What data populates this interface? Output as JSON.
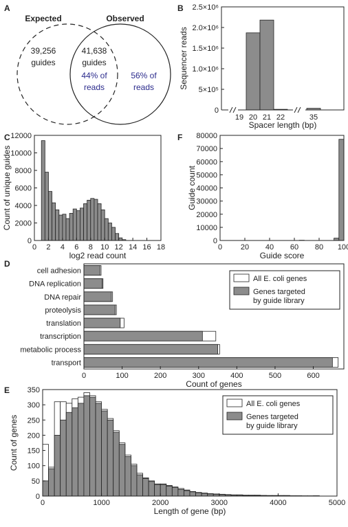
{
  "panels": {
    "A": {
      "label": "A",
      "expected_label": "Expected",
      "observed_label": "Observed",
      "expected_only_count": "39,256",
      "expected_only_unit": "guides",
      "overlap_count": "41,638",
      "overlap_unit": "guides",
      "overlap_pct_line1": "44% of",
      "overlap_pct_line2": "reads",
      "observed_only_line1": "56% of",
      "observed_only_line2": "reads",
      "pct_color": "#2b2b8c"
    },
    "B": {
      "label": "B"
    },
    "C": {
      "label": "C"
    },
    "D": {
      "label": "D"
    },
    "E": {
      "label": "E"
    },
    "F": {
      "label": "F"
    }
  },
  "colors": {
    "bar_fill": "#8c8c8c",
    "all_fill": "#ffffff"
  },
  "chart_data": [
    {
      "panel": "B",
      "type": "bar",
      "categories": [
        "19",
        "20",
        "21",
        "22",
        "35"
      ],
      "values": [
        0,
        1870000,
        2180000,
        15000,
        40000
      ],
      "xlabel": "Spacer length (bp)",
      "ylabel": "Sequencer reads",
      "yticks": [
        0,
        500000,
        1000000,
        1500000,
        2000000,
        2500000
      ],
      "ytick_labels": [
        "0",
        "5×10⁵",
        "1.0×10⁶",
        "1.5×10⁶",
        "2.0×10⁶",
        "2.5×10⁶"
      ],
      "ylim": [
        0,
        2500000
      ],
      "axis_break": true
    },
    {
      "panel": "C",
      "type": "bar",
      "bin_width": 0.5,
      "x_start": 1,
      "values": [
        11400,
        7800,
        5600,
        4300,
        3500,
        2900,
        3000,
        2500,
        3100,
        3600,
        3400,
        3700,
        4200,
        4600,
        4800,
        4700,
        4200,
        3500,
        2500,
        2000,
        1500,
        800,
        300,
        100,
        0,
        0
      ],
      "xlabel": "log2 read count",
      "ylabel": "Count of unique guides",
      "xticks": [
        0,
        2,
        4,
        6,
        8,
        10,
        12,
        14,
        16,
        18
      ],
      "yticks": [
        0,
        2000,
        4000,
        6000,
        8000,
        10000,
        12000
      ],
      "xlim": [
        0,
        18
      ],
      "ylim": [
        0,
        12000
      ]
    },
    {
      "panel": "F",
      "type": "bar",
      "bin_width": 4,
      "x_start": 0,
      "values": [
        0,
        0,
        0,
        0,
        0,
        0,
        0,
        0,
        0,
        0,
        0,
        0,
        0,
        0,
        0,
        0,
        200,
        0,
        0,
        0,
        0,
        0,
        0,
        1800,
        77000
      ],
      "xlabel": "Guide score",
      "ylabel": "Guide count",
      "xticks": [
        0,
        20,
        40,
        60,
        80,
        100
      ],
      "yticks": [
        0,
        10000,
        20000,
        30000,
        40000,
        50000,
        60000,
        70000,
        80000
      ],
      "xlim": [
        0,
        100
      ],
      "ylim": [
        0,
        80000
      ]
    },
    {
      "panel": "D",
      "type": "bar",
      "orientation": "horizontal",
      "categories": [
        "cell adhesion",
        "DNA replication",
        "DNA repair",
        "proteolysis",
        "translation",
        "transcription",
        "metabolic process",
        "transport"
      ],
      "series": [
        {
          "name": "All E. coli genes",
          "values": [
            45,
            50,
            75,
            85,
            105,
            345,
            355,
            665
          ]
        },
        {
          "name": "Genes targeted\nby guide library",
          "values": [
            42,
            48,
            72,
            82,
            95,
            310,
            350,
            650
          ]
        }
      ],
      "xlabel": "Count of genes",
      "xticks": [
        0,
        100,
        200,
        300,
        400,
        500,
        600
      ],
      "xlim": [
        0,
        680
      ],
      "legend": "top-right"
    },
    {
      "panel": "E",
      "type": "bar",
      "bin_width": 100,
      "x_start": 0,
      "series": [
        {
          "name": "All E. coli genes",
          "values": [
            170,
            95,
            310,
            310,
            305,
            320,
            325,
            340,
            330,
            310,
            285,
            255,
            215,
            175,
            135,
            105,
            75,
            60,
            50,
            40,
            40,
            35,
            30,
            25,
            20,
            15,
            12,
            10,
            8,
            7,
            6,
            5,
            4,
            4,
            3,
            3,
            3,
            2,
            2,
            2,
            2,
            2,
            1,
            1,
            1,
            1,
            1,
            0,
            0,
            0
          ]
        },
        {
          "name": "Genes targeted\nby guide library",
          "values": [
            50,
            90,
            200,
            250,
            275,
            290,
            305,
            330,
            325,
            305,
            280,
            250,
            210,
            170,
            130,
            100,
            70,
            58,
            48,
            38,
            38,
            33,
            28,
            22,
            18,
            14,
            11,
            9,
            7,
            6,
            5,
            4,
            3,
            3,
            2,
            2,
            2,
            2,
            1,
            1,
            1,
            1,
            1,
            1,
            0,
            0,
            1,
            0,
            0,
            0
          ]
        }
      ],
      "xlabel": "Length of gene (bp)",
      "ylabel": "Count of genes",
      "xticks": [
        0,
        1000,
        2000,
        3000,
        4000,
        5000
      ],
      "yticks": [
        0,
        50,
        100,
        150,
        200,
        250,
        300,
        350
      ],
      "xlim": [
        0,
        5000
      ],
      "ylim": [
        0,
        350
      ],
      "legend": "top-right"
    }
  ]
}
